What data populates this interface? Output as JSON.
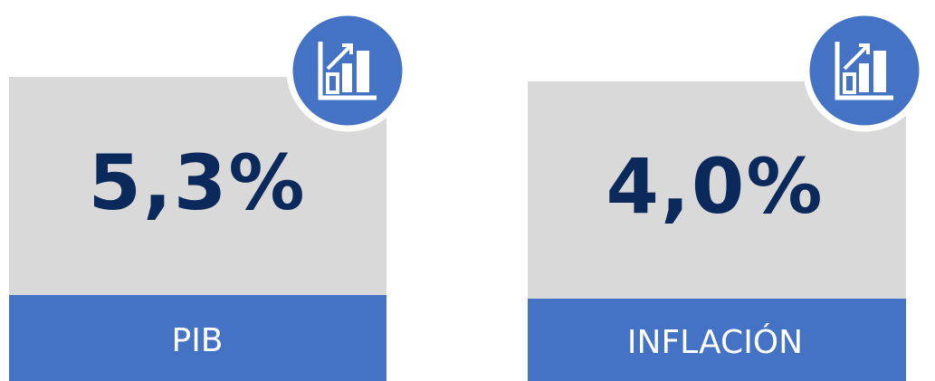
{
  "cards": [
    {
      "value": "5,3%",
      "label": "PIB"
    },
    {
      "value": "4,0%",
      "label": "INFLACIÓN"
    }
  ]
}
